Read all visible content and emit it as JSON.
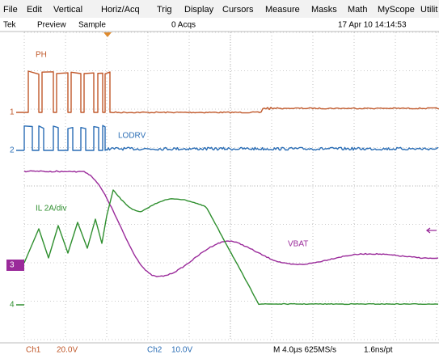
{
  "menu": [
    "File",
    "Edit",
    "Vertical",
    "Horiz/Acq",
    "Trig",
    "Display",
    "Cursors",
    "Measure",
    "Masks",
    "Math",
    "MyScope",
    "Utilit"
  ],
  "status": {
    "brand": "Tek",
    "mode": "Preview",
    "acq_mode": "Sample",
    "acqs": "0 Acqs",
    "datetime": "17 Apr 10 14:14:53"
  },
  "trace_labels": {
    "ch1": "PH",
    "ch2": "LODRV",
    "ch4": "IL 2A/div",
    "ch3": "VBAT"
  },
  "markers": [
    "1",
    "2",
    "3",
    "4"
  ],
  "readout": {
    "ch1": "Ch1",
    "ch1_scale": "20.0V",
    "ch2": "Ch2",
    "ch2_scale": "10.0V",
    "timebase": "M 4.0µs 625MS/s",
    "resolution": "1.6ns/pt"
  }
}
